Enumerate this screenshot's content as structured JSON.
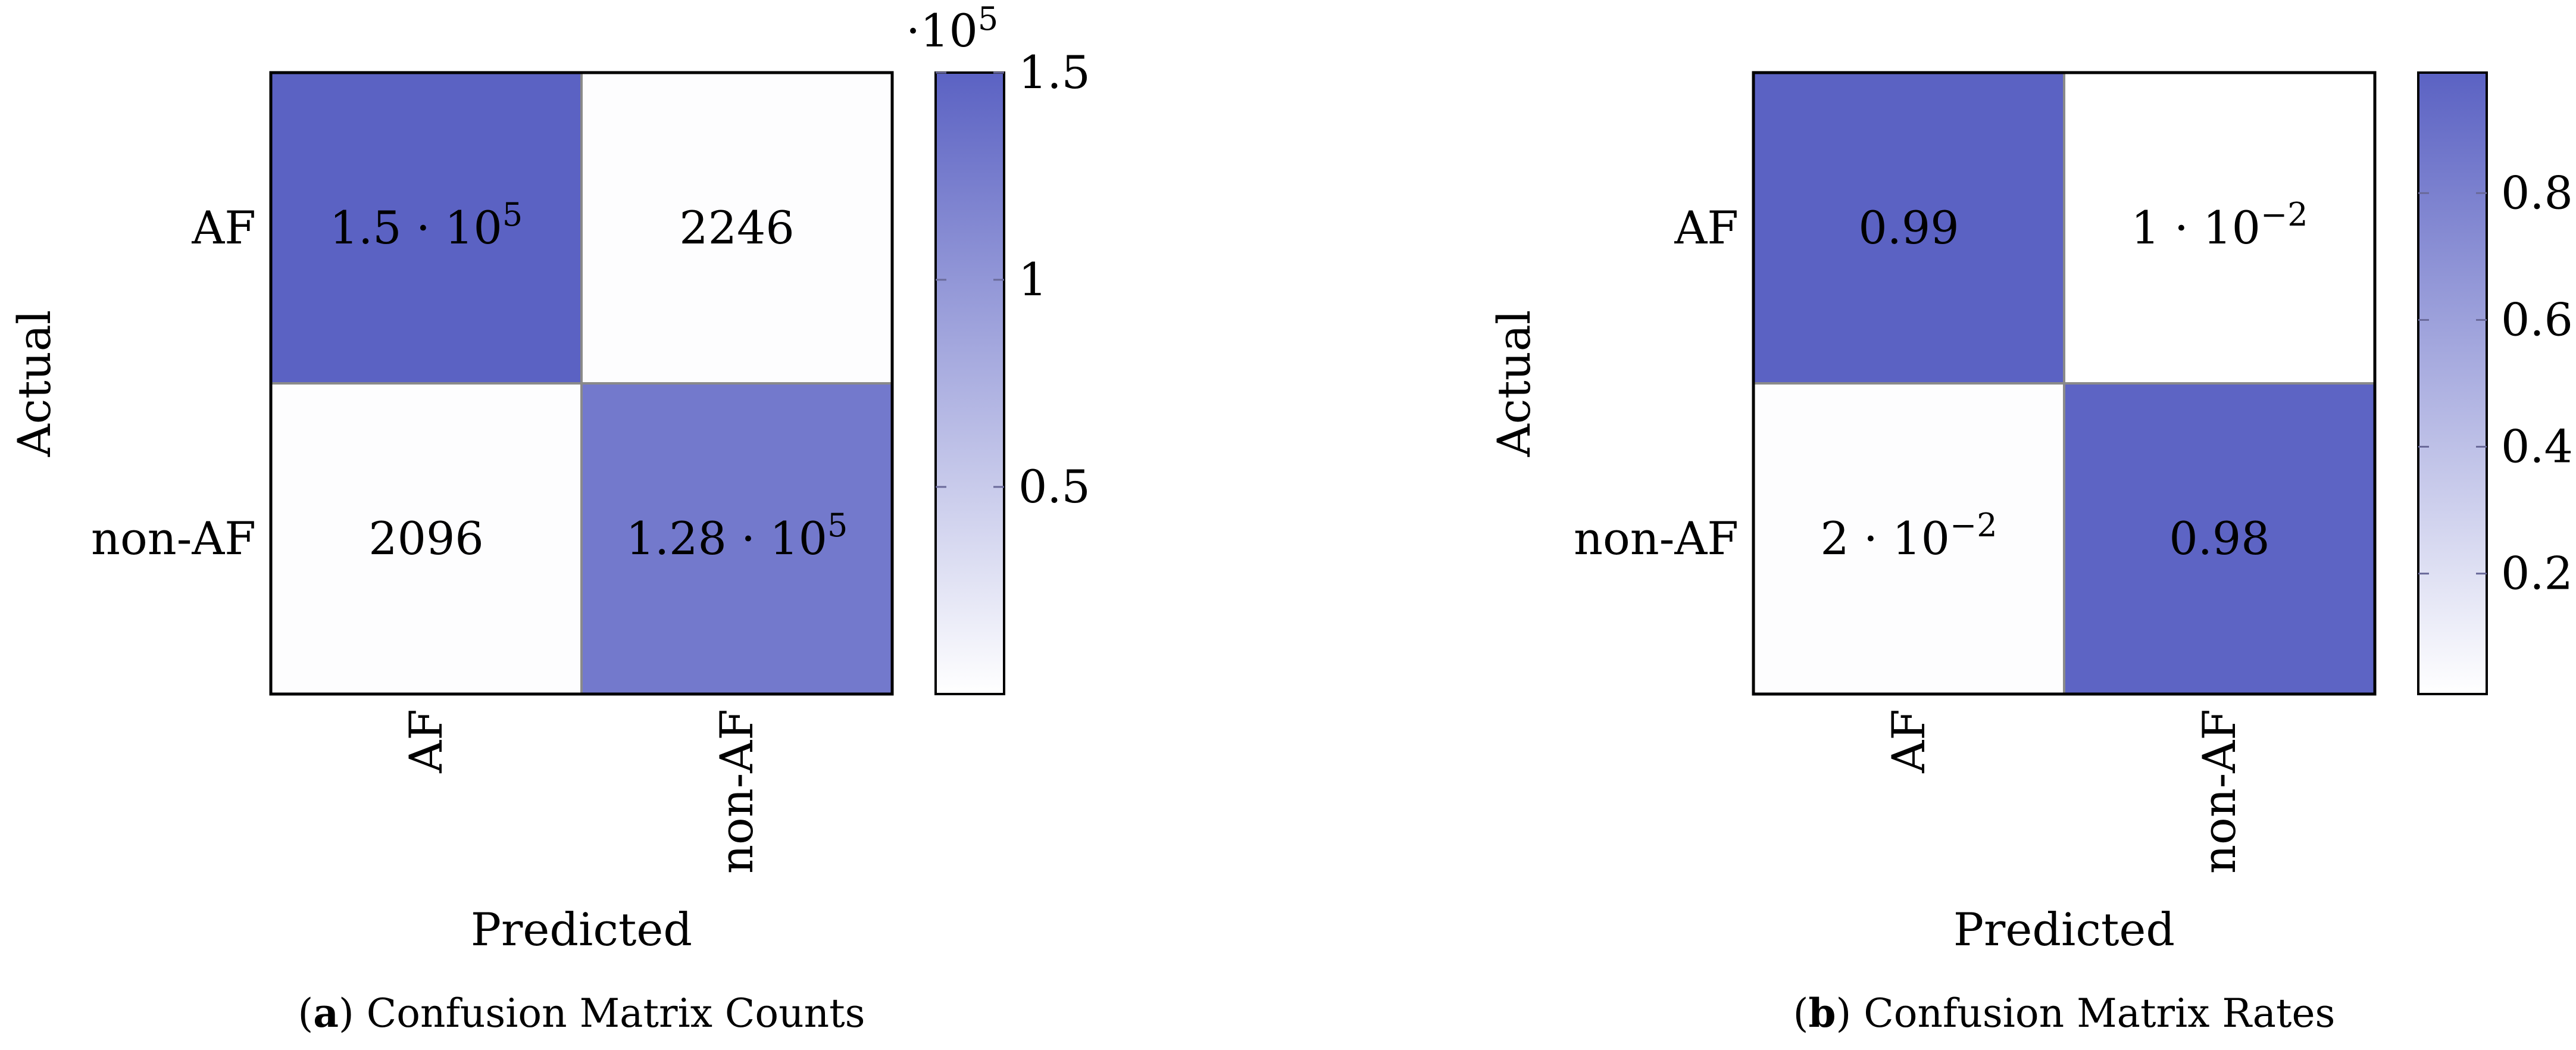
{
  "chart_data": [
    {
      "type": "heatmap",
      "panel_label": "a",
      "caption": "Confusion Matrix Counts",
      "xlabel": "Predicted",
      "ylabel": "Actual",
      "x_categories": [
        "AF",
        "non-AF"
      ],
      "y_categories": [
        "AF",
        "non-AF"
      ],
      "values": [
        [
          150000,
          2246
        ],
        [
          2096,
          128000
        ]
      ],
      "cell_labels": [
        [
          "1.5 · 10",
          "2246"
        ],
        [
          "2096",
          "1.28 · 10"
        ]
      ],
      "cell_label_exponents": [
        [
          "5",
          ""
        ],
        [
          "",
          "5"
        ]
      ],
      "colorbar": {
        "min": 0,
        "max": 150000,
        "ticks": [
          50000,
          100000,
          150000
        ],
        "tick_labels": [
          "0.5",
          "1",
          "1.5"
        ],
        "multiplier_base": "·10",
        "multiplier_exponent": "5"
      },
      "colors": {
        "low": "#ffffff",
        "high": "#5b62c3"
      }
    },
    {
      "type": "heatmap",
      "panel_label": "b",
      "caption": "Confusion Matrix Rates",
      "xlabel": "Predicted",
      "ylabel": "Actual",
      "x_categories": [
        "AF",
        "non-AF"
      ],
      "y_categories": [
        "AF",
        "non-AF"
      ],
      "values": [
        [
          0.99,
          0.01
        ],
        [
          0.02,
          0.98
        ]
      ],
      "cell_labels": [
        [
          "0.99",
          "1 · 10"
        ],
        [
          "2 · 10",
          "0.98"
        ]
      ],
      "cell_label_exponents": [
        [
          "",
          "−2"
        ],
        [
          "−2",
          ""
        ]
      ],
      "colorbar": {
        "min": 0.01,
        "max": 0.99,
        "ticks": [
          0.2,
          0.4,
          0.6,
          0.8
        ],
        "tick_labels": [
          "0.2",
          "0.4",
          "0.6",
          "0.8"
        ],
        "multiplier_base": "",
        "multiplier_exponent": ""
      },
      "colors": {
        "low": "#ffffff",
        "high": "#5b62c3"
      }
    }
  ]
}
